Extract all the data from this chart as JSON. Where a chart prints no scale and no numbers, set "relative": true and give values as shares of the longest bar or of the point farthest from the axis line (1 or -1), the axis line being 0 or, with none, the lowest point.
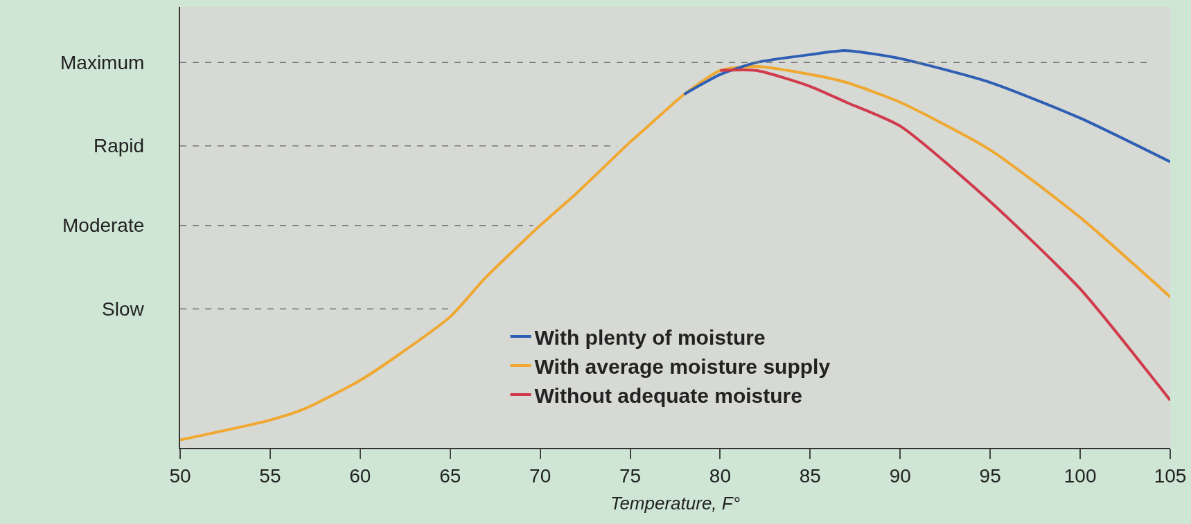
{
  "chart_data": {
    "type": "line",
    "xlabel": "Temperature, F°",
    "relative": true,
    "x": [
      50,
      55,
      57,
      60,
      62,
      65,
      67,
      70,
      72,
      75,
      76,
      78,
      80,
      82,
      85,
      87,
      90,
      95,
      100,
      105
    ],
    "series": [
      {
        "name": "With plenty of moisture",
        "color": "#2f5fb4",
        "values": [
          null,
          null,
          null,
          null,
          null,
          null,
          null,
          null,
          null,
          null,
          null,
          0.89,
          0.94,
          0.97,
          0.99,
          1.0,
          0.98,
          0.92,
          0.83,
          0.72
        ]
      },
      {
        "name": "With average moisture supply",
        "color": "#f0a830",
        "values": [
          0.02,
          0.07,
          0.1,
          0.17,
          0.23,
          0.33,
          0.43,
          0.56,
          0.64,
          0.77,
          0.81,
          0.89,
          0.95,
          0.96,
          0.94,
          0.92,
          0.87,
          0.75,
          0.58,
          0.38
        ]
      },
      {
        "name": "Without adequate moisture",
        "color": "#d03a4a",
        "values": [
          null,
          null,
          null,
          null,
          null,
          null,
          null,
          null,
          null,
          null,
          null,
          null,
          0.95,
          0.95,
          0.91,
          0.87,
          0.81,
          0.62,
          0.4,
          0.12
        ]
      }
    ],
    "xlim": [
      50,
      105
    ],
    "xticks": [
      50,
      55,
      60,
      65,
      70,
      75,
      80,
      85,
      90,
      95,
      100,
      105
    ],
    "ref_lines": [
      {
        "axis": "y",
        "value": 0.35,
        "label": "Slow",
        "color": "#777777",
        "line_style": "dashed"
      },
      {
        "axis": "y",
        "value": 0.56,
        "label": "Moderate",
        "color": "#777777",
        "line_style": "dashed"
      },
      {
        "axis": "y",
        "value": 0.76,
        "label": "Rapid",
        "color": "#777777",
        "line_style": "dashed"
      },
      {
        "axis": "y",
        "value": 0.97,
        "label": "Maximum",
        "color": "#777777",
        "line_style": "dashed"
      }
    ],
    "legend": "bottom right",
    "marker": "none",
    "line_style": "solid"
  }
}
